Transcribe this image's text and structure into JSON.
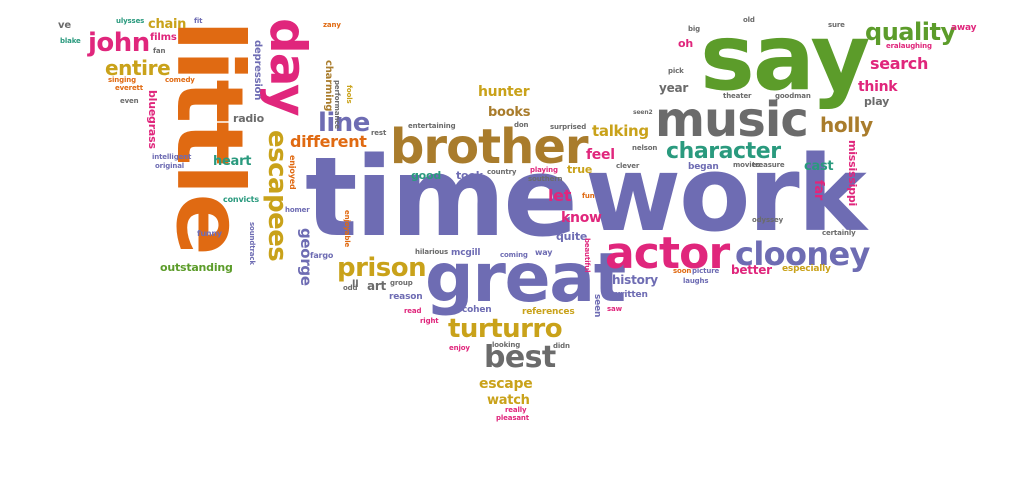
{
  "colors": {
    "purple": "#6e6cb3",
    "gray": "#6b6b6b",
    "green": "#5c9c2a",
    "orange": "#e06a12",
    "magenta": "#e0267c",
    "teal": "#2a9a7e",
    "gold": "#c9a21a",
    "brown": "#a97c2c"
  },
  "words": [
    "time",
    "work",
    "say",
    "little",
    "great",
    "music",
    "brother",
    "actor",
    "day",
    "clooney",
    "turturro",
    "best",
    "prison",
    "escapees",
    "character",
    "quality",
    "john",
    "entire",
    "line",
    "holly",
    "search",
    "think",
    "different",
    "talking",
    "george",
    "mississippi",
    "far",
    "let",
    "feel",
    "heart",
    "escape",
    "watch",
    "know",
    "history",
    "better",
    "cast",
    "hunter",
    "books",
    "year",
    "play",
    "oh",
    "chain",
    "films",
    "depression",
    "charming",
    "bluegrass",
    "outstanding",
    "radio",
    "good",
    "took",
    "true",
    "quite",
    "art",
    "ll",
    "reason",
    "cohen",
    "references",
    "seen",
    "written",
    "especially",
    "began",
    "soon",
    "picture",
    "laughs",
    "mcgill",
    "way",
    "coming",
    "fargo",
    "enjoyable",
    "soundtrack",
    "funny",
    "convicts",
    "homer",
    "enjoyed",
    "intelligent",
    "original",
    "ve",
    "blake",
    "ulysses",
    "fit",
    "zany",
    "big",
    "old",
    "sure",
    "away",
    "eralaughing",
    "fan",
    "comedy",
    "singing",
    "everett",
    "even",
    "performance",
    "fools",
    "nelson",
    "clever",
    "playing",
    "southern",
    "country",
    "surprised",
    "entertaining",
    "rest",
    "theater",
    "goodman",
    "movies",
    "treasure",
    "certainly",
    "odyssey",
    "beautiful",
    "group",
    "hilarious",
    "read",
    "right",
    "saw",
    "enjoy",
    "looking",
    "didn",
    "really",
    "pleasant",
    "pick",
    "seen2",
    "don",
    "fun",
    "odd"
  ]
}
